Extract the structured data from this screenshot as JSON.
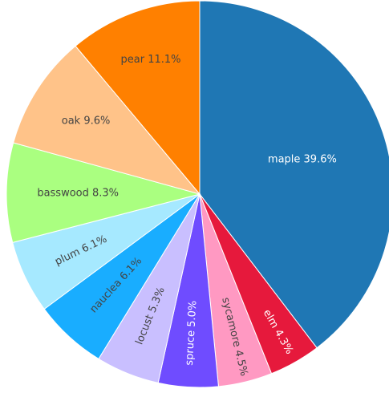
{
  "chart_data": {
    "type": "pie",
    "title": "",
    "direction": "clockwise",
    "start": "top",
    "slices": [
      {
        "label": "maple",
        "value": 39.6,
        "text": "maple 39.6%",
        "color": "#1f77b4",
        "text_color": "#ffffff"
      },
      {
        "label": "elm",
        "value": 4.3,
        "text": "elm 4.3%",
        "color": "#e6193c",
        "text_color": "#ffffff"
      },
      {
        "label": "sycamore",
        "value": 4.5,
        "text": "sycamore 4.5%",
        "color": "#ff99c2",
        "text_color": "#444444"
      },
      {
        "label": "spruce",
        "value": 5.0,
        "text": "spruce 5.0%",
        "color": "#6f4cff",
        "text_color": "#ffffff"
      },
      {
        "label": "locust",
        "value": 5.3,
        "text": "locust 5.3%",
        "color": "#c9bfff",
        "text_color": "#444444"
      },
      {
        "label": "nauclea",
        "value": 6.1,
        "text": "nauclea 6.1%",
        "color": "#19adff",
        "text_color": "#444444"
      },
      {
        "label": "plum",
        "value": 6.1,
        "text": "plum 6.1%",
        "color": "#a6e9ff",
        "text_color": "#444444"
      },
      {
        "label": "basswood",
        "value": 8.3,
        "text": "basswood 8.3%",
        "color": "#aaff80",
        "text_color": "#444444"
      },
      {
        "label": "oak",
        "value": 9.6,
        "text": "oak 9.6%",
        "color": "#ffc389",
        "text_color": "#444444"
      },
      {
        "label": "pear",
        "value": 11.1,
        "text": "pear 11.1%",
        "color": "#ff8000",
        "text_color": "#444444"
      }
    ]
  }
}
